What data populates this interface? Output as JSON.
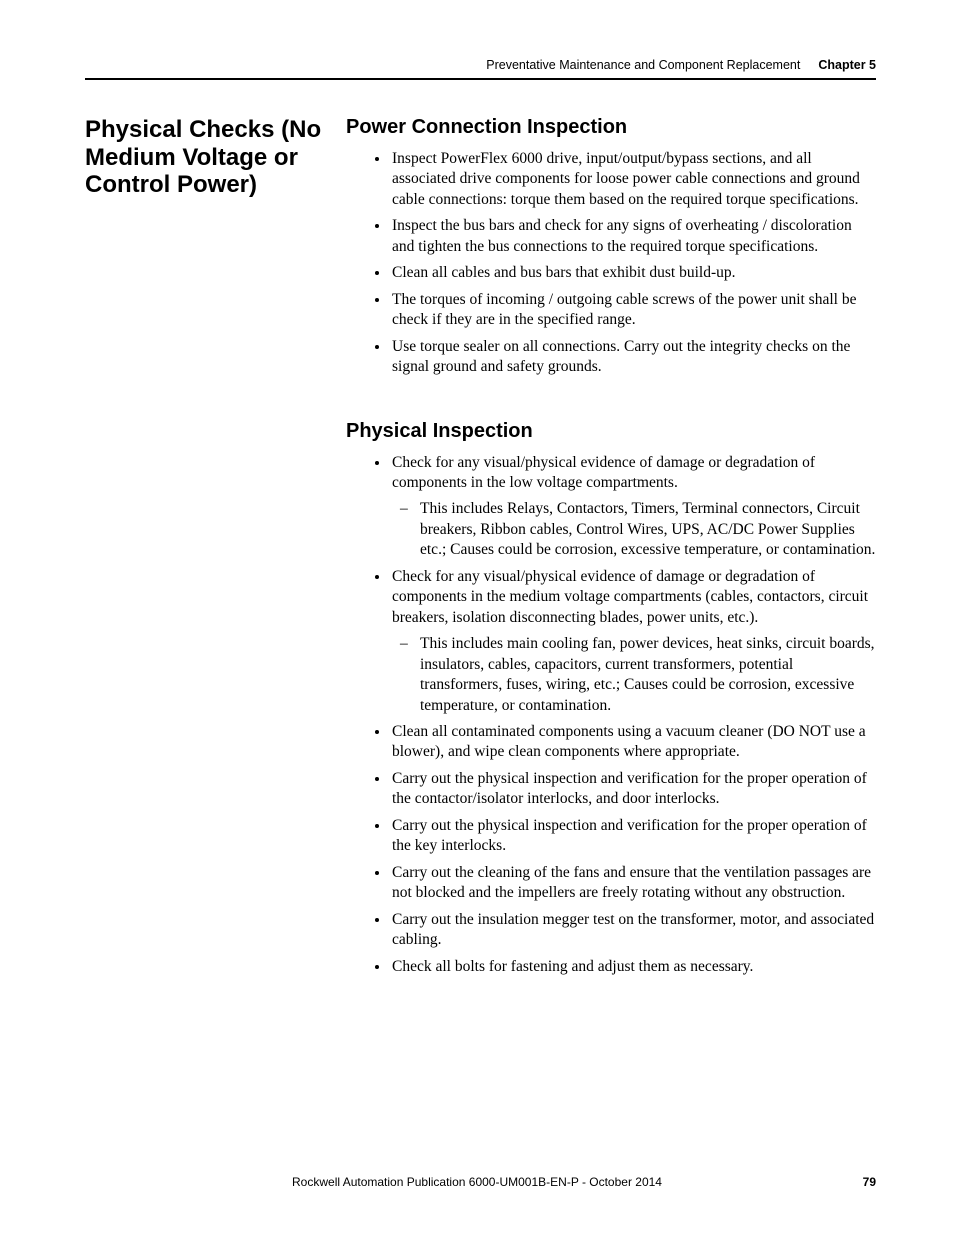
{
  "header": {
    "title": "Preventative Maintenance and Component Replacement",
    "chapter": "Chapter 5"
  },
  "side_heading": "Physical Checks (No Medium Voltage or Control Power)",
  "section1": {
    "heading": "Power Connection Inspection",
    "items": [
      "Inspect PowerFlex 6000 drive, input/output/bypass sections, and all associated drive components for loose power cable connections and ground cable connections: torque them based on the required torque specifications.",
      "Inspect the bus bars and check for any signs of overheating / discoloration and tighten the bus connections to the required torque specifications.",
      "Clean all cables and bus bars that exhibit dust build-up.",
      "The torques of incoming / outgoing cable screws of the power unit shall be check if they are in the specified range.",
      "Use torque sealer on all connections. Carry out the integrity checks on the signal ground and safety grounds."
    ]
  },
  "section2": {
    "heading": "Physical Inspection",
    "items": {
      "i0": "Check for any visual/physical evidence of damage or degradation of components in the low voltage compartments.",
      "i0_sub0": "This includes Relays, Contactors, Timers, Terminal connectors, Circuit breakers, Ribbon cables, Control Wires, UPS, AC/DC Power Supplies etc.; Causes could be corrosion, excessive temperature, or contamination.",
      "i1": "Check for any visual/physical evidence of damage or degradation of components in the medium voltage compartments (cables, contactors, circuit breakers, isolation disconnecting blades, power units, etc.).",
      "i1_sub0": "This includes main cooling fan, power devices, heat sinks, circuit boards, insulators, cables, capacitors, current transformers, potential transformers, fuses, wiring, etc.; Causes could be corrosion, excessive temperature, or contamination.",
      "i2": "Clean all contaminated components using a vacuum cleaner (DO NOT use a blower), and wipe clean components where appropriate.",
      "i3": "Carry out the physical inspection and verification for the proper operation of the contactor/isolator interlocks, and door interlocks.",
      "i4": "Carry out the physical inspection and verification for the proper operation of the key interlocks.",
      "i5": "Carry out the cleaning of the fans and ensure that the ventilation passages are not blocked and the impellers are freely rotating without any obstruction.",
      "i6": "Carry out the insulation megger test on the transformer, motor, and associated cabling.",
      "i7": "Check all bolts for fastening and adjust them as necessary."
    }
  },
  "footer": {
    "publication": "Rockwell Automation Publication 6000-UM001B-EN-P - October 2014",
    "page": "79"
  }
}
